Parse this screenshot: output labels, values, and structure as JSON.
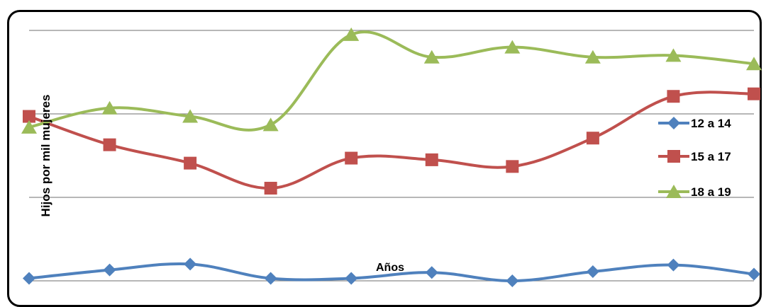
{
  "chart_data": {
    "type": "line",
    "title": "",
    "xlabel": "Años",
    "ylabel": "Hijos por mil mujeres",
    "x": [
      1,
      2,
      3,
      4,
      5,
      6,
      7,
      8,
      9,
      10
    ],
    "ylim": [
      0,
      3
    ],
    "grid": true,
    "legend_position": "right",
    "smooth": true,
    "series": [
      {
        "name": "12 a 14",
        "color": "#4F81BD",
        "marker": "diamond",
        "values": [
          0.03,
          0.13,
          0.2,
          0.03,
          0.03,
          0.1,
          0.0,
          0.11,
          0.19,
          0.08
        ]
      },
      {
        "name": "15 a 17",
        "color": "#C0504D",
        "marker": "square",
        "values": [
          1.97,
          1.63,
          1.41,
          1.11,
          1.47,
          1.45,
          1.37,
          1.71,
          2.21,
          2.24
        ]
      },
      {
        "name": "18 a 19",
        "color": "#9BBB59",
        "marker": "triangle",
        "values": [
          1.84,
          2.07,
          1.97,
          1.87,
          2.95,
          2.68,
          2.8,
          2.68,
          2.7,
          2.6
        ]
      }
    ]
  }
}
